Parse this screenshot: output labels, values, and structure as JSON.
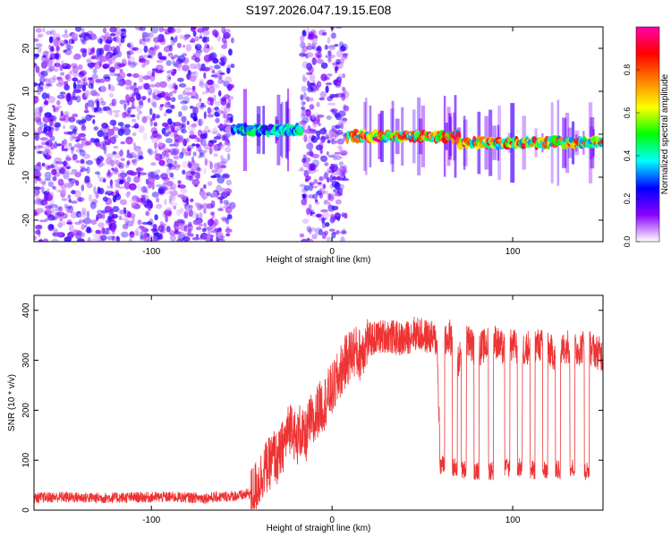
{
  "title": "S197.2026.047.19.15.E08",
  "chart_data": [
    {
      "type": "heatmap",
      "xlabel": "Height of straight line (km)",
      "ylabel": "Frequency (Hz)",
      "xlim": [
        -165,
        150
      ],
      "ylim": [
        -25,
        25
      ],
      "xticks": [
        -100,
        0,
        100
      ],
      "yticks": [
        -20,
        -10,
        0,
        10,
        20
      ],
      "colorbar": {
        "label": "Normalized spectral amplitude",
        "range": [
          0,
          1
        ],
        "ticks": [
          "0.0",
          "0.2",
          "0.4",
          "0.6",
          "0.8"
        ],
        "colormap": [
          "#ffffff",
          "#8a00ff",
          "#0000ff",
          "#00ffff",
          "#00ff00",
          "#ffff00",
          "#ff8000",
          "#ff0000",
          "#ff00aa"
        ]
      },
      "segments": [
        {
          "x_range": [
            -165,
            -55
          ],
          "description": "broadband noise",
          "freq_hz": null,
          "amplitude": 0.12
        },
        {
          "x_range": [
            -55,
            -17
          ],
          "description": "tone near 1 Hz",
          "freq_hz": 1,
          "amplitude": 0.45
        },
        {
          "x_range": [
            -17,
            8
          ],
          "description": "broadband noise",
          "freq_hz": null,
          "amplitude": 0.12
        },
        {
          "x_range": [
            8,
            70
          ],
          "description": "tone near -0.5 Hz",
          "freq_hz": -0.5,
          "amplitude": 0.9
        },
        {
          "x_range": [
            70,
            150
          ],
          "description": "tone near -2 Hz",
          "freq_hz": -2,
          "amplitude": 0.85
        }
      ]
    },
    {
      "type": "line",
      "xlabel": "Height of straight line (km)",
      "ylabel": "SNR (10 * v/v)",
      "xlim": [
        -165,
        150
      ],
      "ylim": [
        0,
        430
      ],
      "xticks": [
        -100,
        0,
        100
      ],
      "yticks": [
        0,
        100,
        200,
        300,
        400
      ],
      "color": "#ee3333",
      "series": [
        {
          "name": "SNR",
          "x": [
            -165,
            -150,
            -130,
            -110,
            -90,
            -70,
            -50,
            -45,
            -40,
            -38,
            -35,
            -32,
            -30,
            -28,
            -25,
            -22,
            -20,
            -18,
            -15,
            -12,
            -10,
            -8,
            -5,
            -2,
            0,
            3,
            5,
            8,
            10,
            12,
            15,
            18,
            20,
            25,
            30,
            35,
            40,
            45,
            50,
            55,
            58,
            60,
            62,
            65,
            70,
            75,
            80,
            85,
            90,
            95,
            100,
            105,
            110,
            115,
            120,
            125,
            130,
            135,
            140,
            145,
            150
          ],
          "values": [
            20,
            22,
            20,
            21,
            22,
            20,
            25,
            30,
            60,
            80,
            90,
            110,
            100,
            120,
            150,
            180,
            130,
            160,
            140,
            180,
            170,
            200,
            210,
            230,
            240,
            260,
            280,
            300,
            310,
            320,
            310,
            330,
            340,
            345,
            350,
            345,
            340,
            355,
            350,
            345,
            340,
            100,
            330,
            350,
            300,
            340,
            320,
            330,
            340,
            320,
            330,
            320,
            330,
            330,
            320,
            310,
            330,
            320,
            330,
            320,
            310
          ]
        }
      ],
      "dropouts": [
        {
          "x": 61,
          "y": 90
        },
        {
          "x": 68,
          "y": 85
        },
        {
          "x": 73,
          "y": 80
        },
        {
          "x": 80,
          "y": 80
        },
        {
          "x": 88,
          "y": 80
        },
        {
          "x": 97,
          "y": 85
        },
        {
          "x": 104,
          "y": 85
        },
        {
          "x": 111,
          "y": 80
        },
        {
          "x": 118,
          "y": 80
        },
        {
          "x": 125,
          "y": 80
        },
        {
          "x": 133,
          "y": 85
        },
        {
          "x": 141,
          "y": 80
        }
      ]
    }
  ]
}
